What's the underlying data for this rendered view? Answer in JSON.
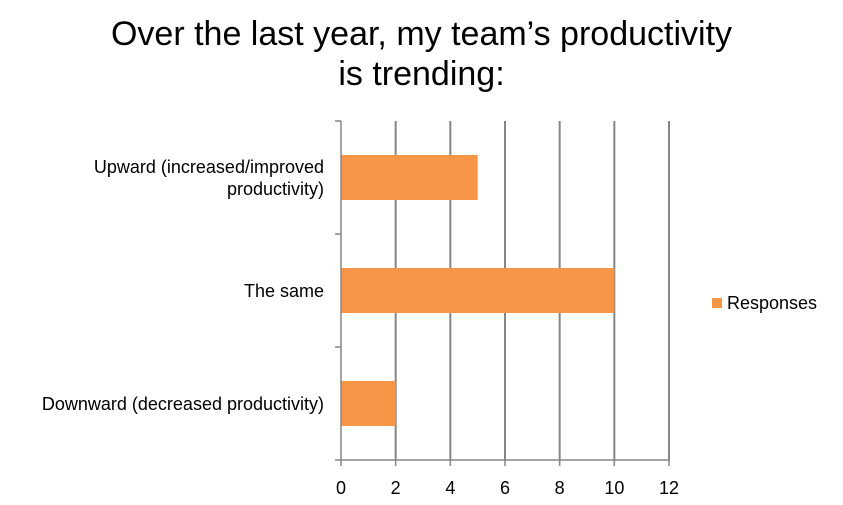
{
  "chart_data": {
    "type": "bar",
    "orientation": "horizontal",
    "title_lines": [
      "Over the last year, my team’s productivity",
      "is trending:"
    ],
    "categories": [
      [
        "Upward (increased/improved",
        "productivity)"
      ],
      [
        "The same"
      ],
      [
        "Downward (decreased productivity)"
      ]
    ],
    "series": [
      {
        "name": "Responses",
        "values": [
          5,
          10,
          2
        ],
        "color": "#F79646"
      }
    ],
    "x_ticks": [
      "0",
      "2",
      "4",
      "6",
      "8",
      "10",
      "12"
    ],
    "xlim": [
      0,
      12
    ],
    "grid": true,
    "legend_position": "right"
  }
}
